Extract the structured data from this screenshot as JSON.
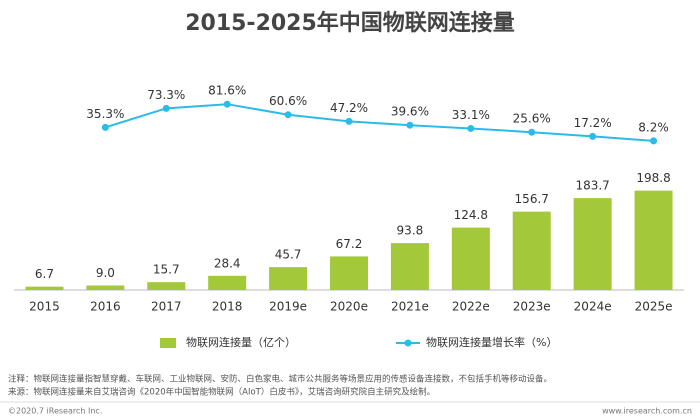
{
  "chart_data": {
    "type": "bar",
    "title": "2015-2025年中国物联网连接量",
    "categories": [
      "2015",
      "2016",
      "2017",
      "2018",
      "2019e",
      "2020e",
      "2021e",
      "2022e",
      "2023e",
      "2024e",
      "2025e"
    ],
    "series": [
      {
        "name": "物联网连接量（亿个）",
        "type": "bar",
        "color": "#a3c93a",
        "values": [
          6.7,
          9.0,
          15.7,
          28.4,
          45.7,
          67.2,
          93.8,
          124.8,
          156.7,
          183.7,
          198.8
        ],
        "value_labels": [
          "6.7",
          "9.0",
          "15.7",
          "28.4",
          "45.7",
          "67.2",
          "93.8",
          "124.8",
          "156.7",
          "183.7",
          "198.8"
        ]
      },
      {
        "name": "物联网连接量增长率（%）",
        "type": "line",
        "axis": "y2",
        "color": "#2bbbe8",
        "values": [
          null,
          35.3,
          73.3,
          81.6,
          60.6,
          47.2,
          39.6,
          33.1,
          25.6,
          17.2,
          8.2
        ],
        "value_labels": [
          null,
          "35.3%",
          "73.3%",
          "81.6%",
          "60.6%",
          "47.2%",
          "39.6%",
          "33.1%",
          "25.6%",
          "17.2%",
          "8.2%"
        ]
      }
    ],
    "ylim": [
      0,
      200
    ],
    "y2lim": [
      0,
      100
    ],
    "notes": "注释：物联网连接量指智慧穿戴、车联网、工业物联网、安防、白色家电、城市公共服务等场景应用的传感设备连接数，不包括手机等移动设备。",
    "source": "来源：物联网连接量来自艾瑞咨询《2020年中国智能物联网（AIoT）白皮书》，艾瑞咨询研究院自主研究及绘制。",
    "copyright": "©2020.7 iResearch Inc.",
    "website": "www.iresearch.com.cn"
  }
}
